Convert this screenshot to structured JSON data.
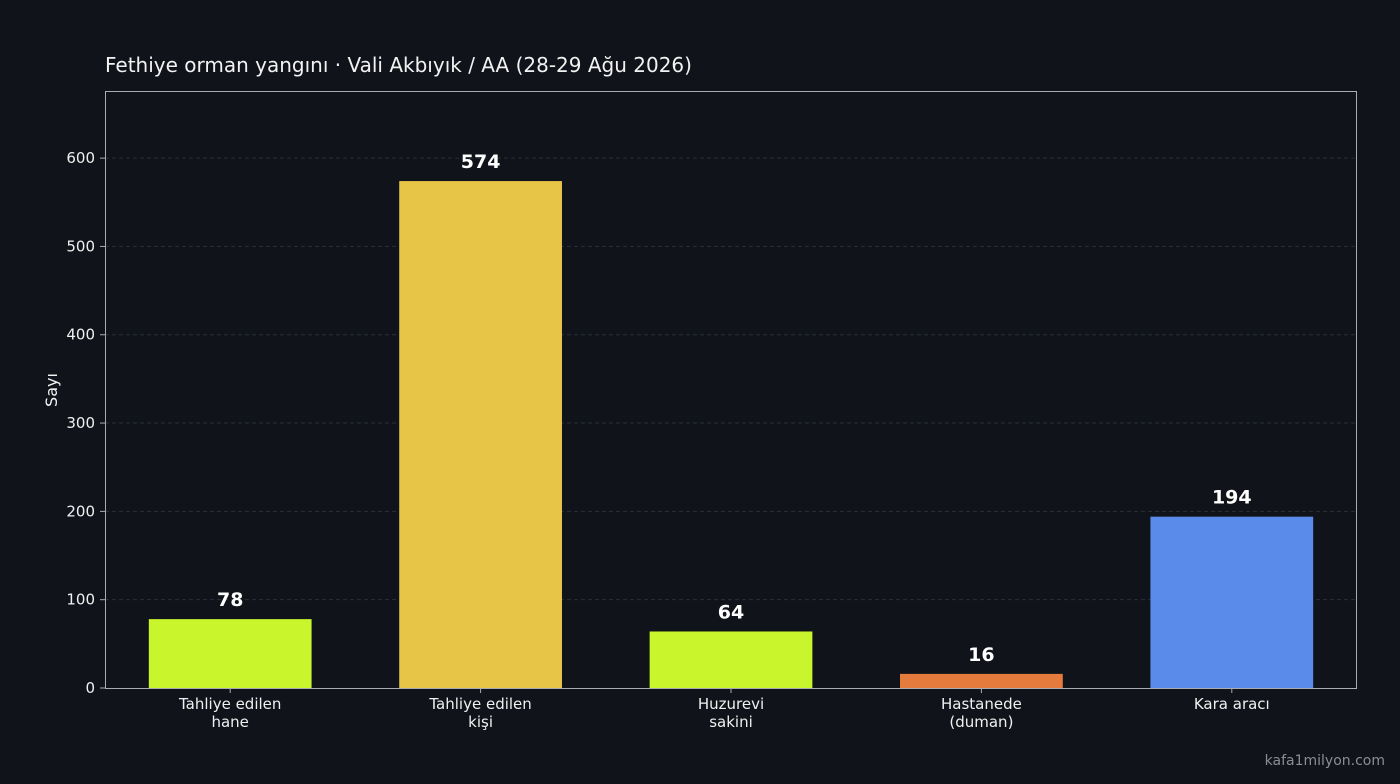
{
  "chart_data": {
    "type": "bar",
    "title": "Fethiye orman yangını · Vali Akbıyık / AA (28-29 Ağu 2026)",
    "xlabel": "",
    "ylabel": "Sayı",
    "categories": [
      [
        "Tahliye edilen",
        "hane"
      ],
      [
        "Tahliye edilen",
        "kişi"
      ],
      [
        "Huzurevi",
        "sakini"
      ],
      [
        "Hastanede",
        "(duman)"
      ],
      [
        "Kara aracı"
      ]
    ],
    "values": [
      78,
      574,
      64,
      16,
      194
    ],
    "colors": [
      "#c8f52b",
      "#e6c547",
      "#c8f52b",
      "#e57c3e",
      "#5b8bea"
    ],
    "ylim": [
      0,
      676
    ],
    "yticks": [
      0,
      100,
      200,
      300,
      400,
      500,
      600
    ],
    "grid": true,
    "legend": "none"
  },
  "watermark": "kafa1milyon.com",
  "colors": {
    "background": "#10131a",
    "axis": "#a9acb2",
    "grid": "#2a2f3a"
  }
}
